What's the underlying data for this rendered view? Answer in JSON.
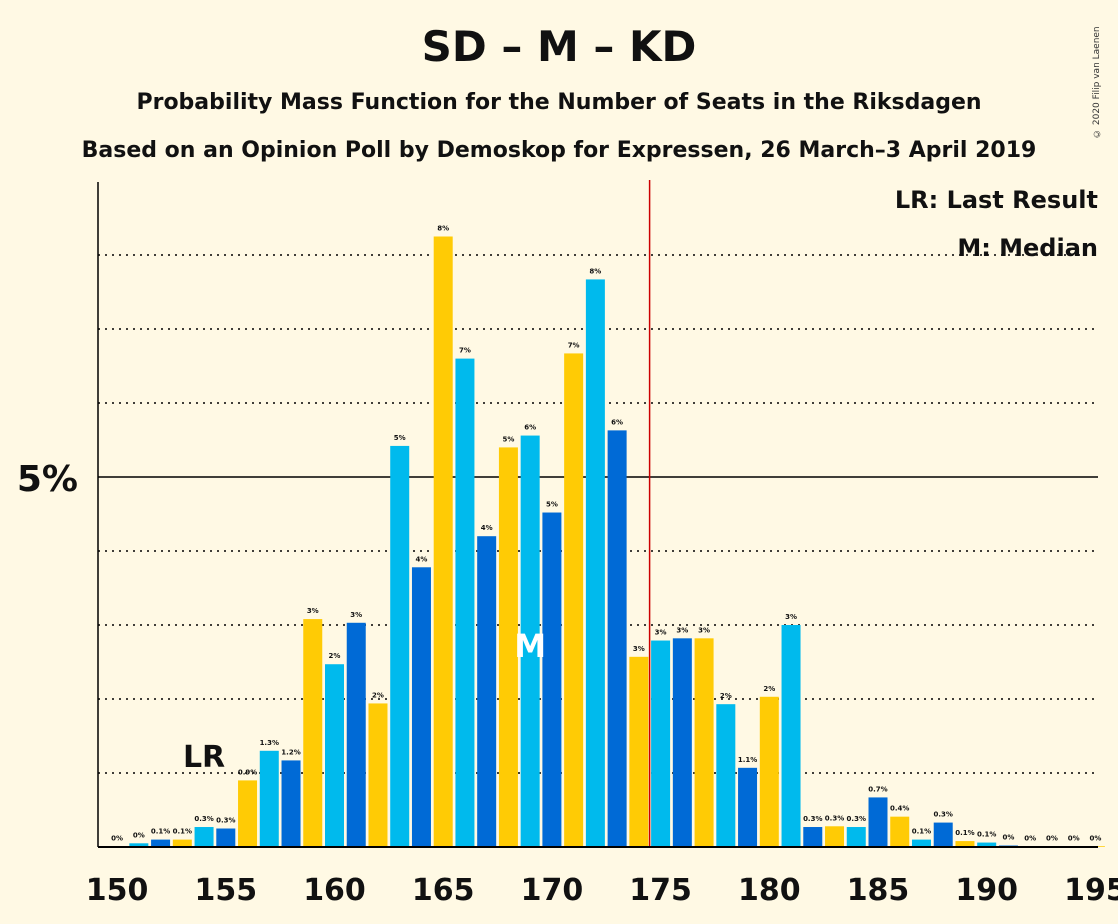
{
  "title": "SD – M – KD",
  "subtitle": "Probability Mass Function for the Number of Seats in the Riksdagen",
  "subtitle2": "Based on an Opinion Poll by Demoskop for Expressen, 26 March–3 April 2019",
  "copyright": "© 2020 Filip van Laenen",
  "legend": {
    "last_result": "LR: Last Result",
    "median": "M: Median"
  },
  "colors": {
    "background": "#FFF9E4",
    "light_blue": "#00BAED",
    "dark_blue": "#006AD6",
    "yellow": "#FFCB05",
    "majority_line": "#CC0000",
    "axis": "#000000"
  },
  "chart_data": {
    "type": "bar",
    "x": [
      150,
      151,
      152,
      153,
      154,
      155,
      156,
      157,
      158,
      159,
      160,
      161,
      162,
      163,
      164,
      165,
      166,
      167,
      168,
      169,
      170,
      171,
      172,
      173,
      174,
      175,
      176,
      177,
      178,
      179,
      180,
      181,
      182,
      183,
      184,
      185,
      186,
      187,
      188,
      189,
      190,
      191,
      192,
      193,
      194,
      195
    ],
    "values": [
      0.01,
      0.05,
      0.1,
      0.1,
      0.27,
      0.25,
      0.9,
      1.3,
      1.17,
      3.08,
      2.47,
      3.03,
      1.94,
      5.42,
      3.78,
      8.25,
      6.6,
      4.2,
      5.4,
      5.56,
      4.52,
      6.67,
      7.67,
      5.63,
      2.57,
      2.79,
      2.82,
      2.82,
      1.93,
      1.07,
      2.03,
      3.0,
      0.27,
      0.28,
      0.27,
      0.67,
      0.41,
      0.1,
      0.33,
      0.08,
      0.06,
      0.02,
      0.01,
      0.01,
      0.01,
      0.01
    ],
    "labels": [
      "0%",
      "0%",
      "0.1%",
      "0.1%",
      "0.3%",
      "0.3%",
      "0.9%",
      "1.3%",
      "1.2%",
      "3%",
      "2%",
      "3%",
      "2%",
      "5%",
      "4%",
      "8%",
      "7%",
      "4%",
      "5%",
      "6%",
      "5%",
      "7%",
      "8%",
      "6%",
      "3%",
      "3%",
      "3%",
      "3%",
      "2%",
      "1.1%",
      "2%",
      "3%",
      "0.3%",
      "0.3%",
      "0.3%",
      "0.7%",
      "0.4%",
      "0.1%",
      "0.3%",
      "0.1%",
      "0.1%",
      "0%",
      "0%",
      "0%",
      "0%",
      "0%"
    ],
    "x_ticks": [
      "150",
      "155",
      "160",
      "165",
      "170",
      "175",
      "180",
      "185",
      "190",
      "195"
    ],
    "y_tick_label": "5%",
    "y_tick_value": 5,
    "ylim": [
      0,
      9
    ],
    "grid": true,
    "last_result_seat": 154,
    "last_result_marker": "LR",
    "median_seat": 169,
    "median_marker": "M",
    "majority_seat": 175,
    "legend_position": "top-right"
  }
}
